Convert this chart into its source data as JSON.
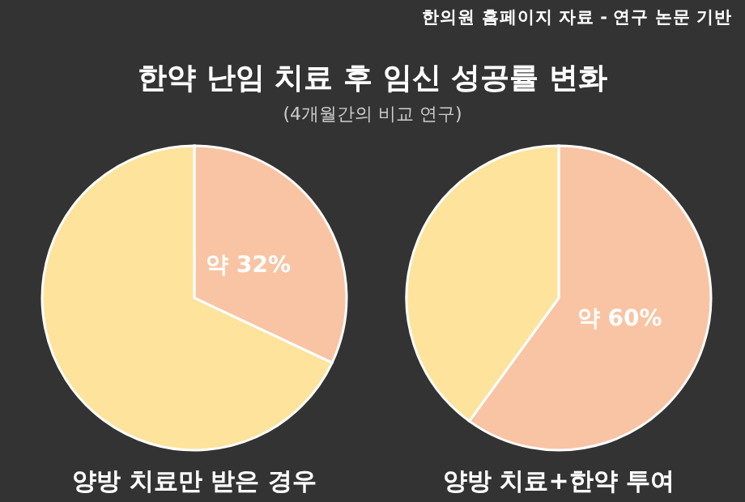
{
  "chart_data": [
    {
      "type": "pie",
      "title": "한약 난임 치료 후 임신 성공률 변화",
      "subtitle": "(4개월간의 비교 연구)",
      "annotations": [
        "한의원 홈페이지 자료 - 연구 논문 기반"
      ],
      "xlabel": "양방 치료만 받은 경우",
      "categories": [
        null,
        null
      ],
      "values": [
        32,
        68
      ],
      "colors": [
        "#f9c4a3",
        "#fde39c"
      ],
      "value_labels": [
        "약 32%",
        null
      ]
    },
    {
      "type": "pie",
      "xlabel": "양방 치료+한약 투여",
      "categories": [
        null,
        null
      ],
      "values": [
        60,
        40
      ],
      "colors": [
        "#f9c4a3",
        "#fde39c"
      ],
      "value_labels": [
        "약 60%",
        null
      ]
    }
  ]
}
